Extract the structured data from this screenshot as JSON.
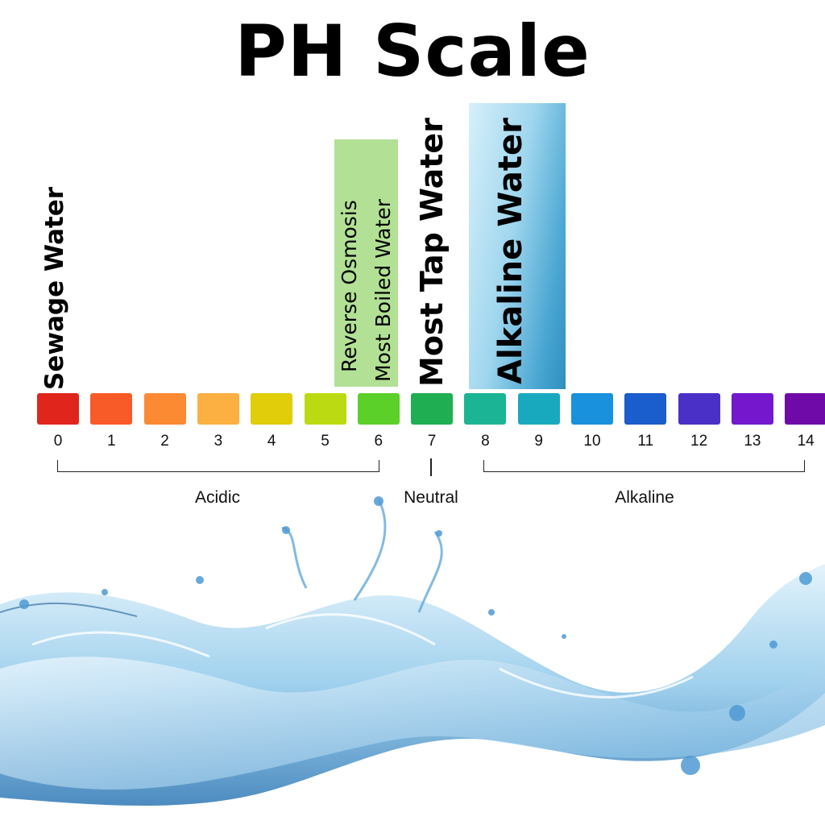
{
  "title": "PH Scale",
  "scale": [
    {
      "value": "0",
      "color": "#e0261c"
    },
    {
      "value": "1",
      "color": "#f85a28"
    },
    {
      "value": "2",
      "color": "#fb8a32"
    },
    {
      "value": "3",
      "color": "#fbb041"
    },
    {
      "value": "4",
      "color": "#e1cd0a"
    },
    {
      "value": "5",
      "color": "#bcda11"
    },
    {
      "value": "6",
      "color": "#5bd028"
    },
    {
      "value": "7",
      "color": "#1fae52"
    },
    {
      "value": "8",
      "color": "#1bb595"
    },
    {
      "value": "9",
      "color": "#19a9bf"
    },
    {
      "value": "10",
      "color": "#1991dc"
    },
    {
      "value": "11",
      "color": "#1a5dcc"
    },
    {
      "value": "12",
      "color": "#4b30c8"
    },
    {
      "value": "13",
      "color": "#7417cd"
    },
    {
      "value": "14",
      "color": "#6f0aa8"
    }
  ],
  "labels": {
    "sewage": "Sewage Water",
    "reverse_osmosis": "Reverse Osmosis",
    "boiled": "Most Boiled Water",
    "tap": "Most Tap Water",
    "alkaline_water": "Alkaline Water"
  },
  "ranges": {
    "acidic": "Acidic",
    "neutral": "Neutral",
    "alkaline": "Alkaline"
  },
  "colors": {
    "green_highlight": "#b2e094",
    "blue_highlight_top": "#c5e8f6",
    "blue_highlight_bottom": "#2e95c6"
  }
}
